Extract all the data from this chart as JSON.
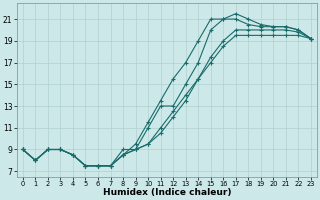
{
  "xlabel": "Humidex (Indice chaleur)",
  "bg_color": "#cce8e8",
  "grid_color": "#b0d0d0",
  "line_color": "#1a6b6b",
  "xlim": [
    -0.5,
    23.5
  ],
  "ylim": [
    6.5,
    22.5
  ],
  "xticks": [
    0,
    1,
    2,
    3,
    4,
    5,
    6,
    7,
    8,
    9,
    10,
    11,
    12,
    13,
    14,
    15,
    16,
    17,
    18,
    19,
    20,
    21,
    22,
    23
  ],
  "yticks": [
    7,
    9,
    11,
    13,
    15,
    17,
    19,
    21
  ],
  "lines": [
    {
      "x": [
        0,
        1,
        2,
        3,
        4,
        5,
        6,
        7,
        8,
        9,
        10,
        11,
        12,
        13,
        14,
        15,
        16,
        17,
        18,
        19,
        20,
        21,
        22,
        23
      ],
      "y": [
        9.0,
        8.0,
        9.0,
        9.0,
        8.5,
        7.5,
        7.5,
        7.5,
        8.5,
        9.5,
        11.5,
        13.5,
        15.5,
        17.0,
        19.0,
        21.0,
        21.0,
        21.5,
        21.0,
        20.5,
        20.3,
        20.3,
        20.0,
        19.2
      ]
    },
    {
      "x": [
        0,
        1,
        2,
        3,
        4,
        5,
        6,
        7,
        8,
        9,
        10,
        11,
        12,
        13,
        14,
        15,
        16,
        17,
        18,
        19,
        20,
        21,
        22,
        23
      ],
      "y": [
        9.0,
        8.0,
        9.0,
        9.0,
        8.5,
        7.5,
        7.5,
        7.5,
        9.0,
        9.0,
        11.0,
        13.0,
        13.0,
        15.0,
        17.0,
        20.0,
        21.0,
        21.0,
        20.5,
        20.3,
        20.3,
        20.3,
        20.0,
        19.2
      ]
    },
    {
      "x": [
        0,
        1,
        2,
        3,
        4,
        5,
        6,
        7,
        8,
        9,
        10,
        11,
        12,
        13,
        14,
        15,
        16,
        17,
        18,
        19,
        20,
        21,
        22,
        23
      ],
      "y": [
        9.0,
        8.0,
        9.0,
        9.0,
        8.5,
        7.5,
        7.5,
        7.5,
        8.5,
        9.0,
        9.5,
        11.0,
        12.5,
        14.0,
        15.5,
        17.0,
        18.5,
        19.5,
        19.5,
        19.5,
        19.5,
        19.5,
        19.5,
        19.2
      ]
    },
    {
      "x": [
        0,
        1,
        2,
        3,
        4,
        5,
        6,
        7,
        8,
        9,
        10,
        11,
        12,
        13,
        14,
        15,
        16,
        17,
        18,
        19,
        20,
        21,
        22,
        23
      ],
      "y": [
        9.0,
        8.0,
        9.0,
        9.0,
        8.5,
        7.5,
        7.5,
        7.5,
        8.5,
        9.0,
        9.5,
        10.5,
        12.0,
        13.5,
        15.5,
        17.5,
        19.0,
        20.0,
        20.0,
        20.0,
        20.0,
        20.0,
        19.8,
        19.2
      ]
    }
  ]
}
